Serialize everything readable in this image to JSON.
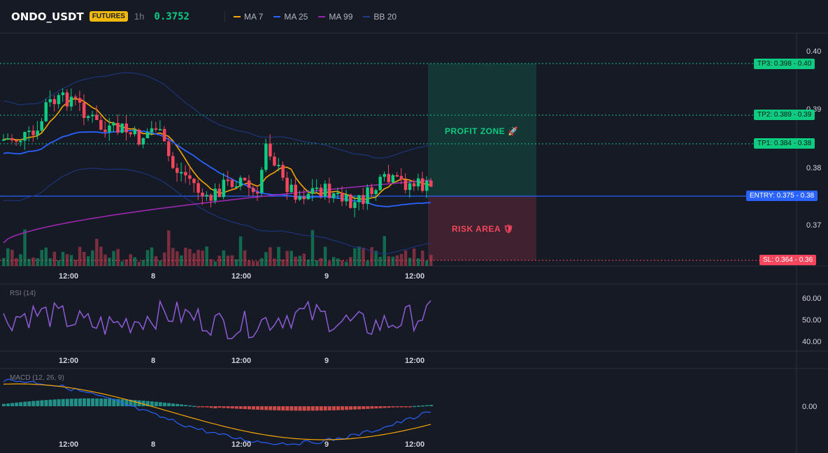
{
  "header": {
    "symbol": "ONDO_USDT",
    "badge": "FUTURES",
    "timeframe": "1h",
    "price": "0.3752",
    "legend": [
      {
        "label": "MA 7",
        "color": "#f7a600"
      },
      {
        "label": "MA 25",
        "color": "#2962ff"
      },
      {
        "label": "MA 99",
        "color": "#9c27b0"
      },
      {
        "label": "BB 20",
        "color": "#1e3a8a"
      }
    ]
  },
  "price_axis": {
    "ticks": [
      "0.40",
      "0.39",
      "0.38",
      "0.37"
    ]
  },
  "levels": {
    "tp3": "TP3: 0.398 - 0.40",
    "tp2": "TP2: 0.389 - 0.39",
    "tp1": "TP1: 0.384 - 0.38",
    "entry": "ENTRY: 0.375 - 0.38",
    "sl": "SL: 0.364 - 0.36"
  },
  "zones": {
    "profit": "PROFIT ZONE 🚀",
    "risk": "RISK AREA 🛡"
  },
  "time_axis": [
    "12:00",
    "8",
    "12:00",
    "9",
    "12:00"
  ],
  "rsi": {
    "label": "RSI (14)",
    "ticks": [
      "60.00",
      "50.00",
      "40.00"
    ]
  },
  "macd": {
    "label": "MACD (12, 26, 9)",
    "ticks": [
      "0.00"
    ]
  },
  "colors": {
    "up": "#0ecb81",
    "down": "#f6465d",
    "ma7": "#f7a600",
    "ma25": "#2962ff",
    "ma99": "#9c27b0",
    "bb": "#1e3a8a",
    "rsi": "#8e5bd6"
  }
}
